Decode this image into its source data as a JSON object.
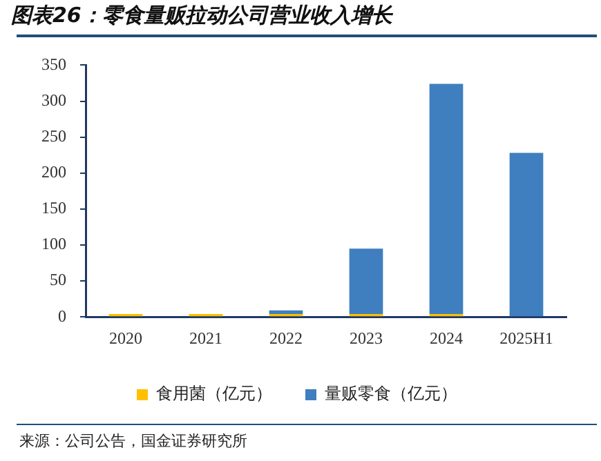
{
  "chart_data": {
    "type": "bar",
    "title": "图表26：零食量贩拉动公司营业收入增长",
    "categories": [
      "2020",
      "2021",
      "2022",
      "2023",
      "2024",
      "2025H1"
    ],
    "series": [
      {
        "name": "食用菌（亿元）",
        "color": "#ffc000",
        "values": [
          4,
          4,
          4,
          4,
          4,
          1
        ]
      },
      {
        "name": "量贩零食（亿元）",
        "color": "#3f7fbf",
        "values": [
          0,
          0,
          5,
          91,
          320,
          227
        ]
      }
    ],
    "stacked": true,
    "ylim": [
      0,
      350
    ],
    "yticks": [
      0,
      50,
      100,
      150,
      200,
      250,
      300,
      350
    ],
    "grid": false,
    "legend": "bottom",
    "annotations": [
      "来源：公司公告，国金证券研究所"
    ]
  }
}
